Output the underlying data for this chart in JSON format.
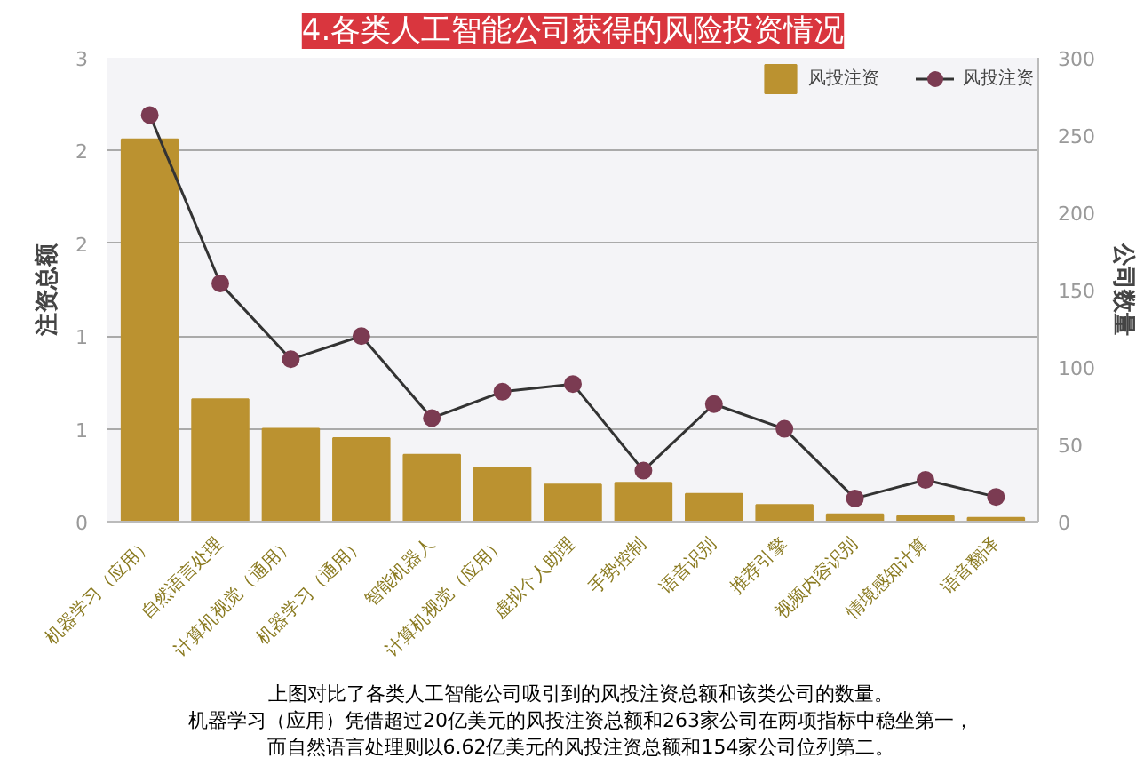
{
  "chart_data": {
    "type": "bar",
    "title": "4.各类人工智能公司获得的风险投资情况",
    "ylabel": "注资总额",
    "y2label": "公司数量",
    "categories": [
      "机器学习（应用）",
      "自然语言处理",
      "计算机视觉（通用）",
      "机器学习（通用）",
      "智能机器人",
      "计算机视觉（应用）",
      "虚拟个人助理",
      "手势控制",
      "语音识别",
      "推荐引擎",
      "视频内容识别",
      "情境感知计算",
      "语音翻译"
    ],
    "series": [
      {
        "name": "风投注资",
        "type": "bar",
        "color": "#bb9230",
        "values": [
          2.06,
          0.66,
          0.5,
          0.45,
          0.36,
          0.29,
          0.2,
          0.21,
          0.15,
          0.09,
          0.04,
          0.03,
          0.02
        ]
      },
      {
        "name": "风投注资",
        "type": "line",
        "axis": "y2",
        "color": "#7b3b52",
        "marker": "circle",
        "values": [
          263,
          154,
          105,
          120,
          67,
          84,
          89,
          33,
          76,
          60,
          15,
          27,
          16
        ]
      }
    ],
    "ylim": [
      0,
      2.5
    ],
    "yticks": [
      {
        "value": 0,
        "label": "0"
      },
      {
        "value": 0.5,
        "label": "1"
      },
      {
        "value": 1,
        "label": "1"
      },
      {
        "value": 1.5,
        "label": "2"
      },
      {
        "value": 2,
        "label": "2"
      },
      {
        "value": 2.5,
        "label": "3"
      }
    ],
    "y2lim": [
      0,
      300
    ],
    "y2ticks": [
      0,
      50,
      100,
      150,
      200,
      250,
      300
    ],
    "grid": "y",
    "legend": "top right",
    "annotations": [
      "上图对比了各类人工智能公司吸引到的风投注资总额和该类公司的数量。",
      "机器学习（应用）凭借超过20亿美元的风投注资总额和263家公司在两项指标中稳坐第一，",
      "而自然语言处理则以6.62亿美元的风投注资总额和154家公司位列第二。"
    ]
  }
}
